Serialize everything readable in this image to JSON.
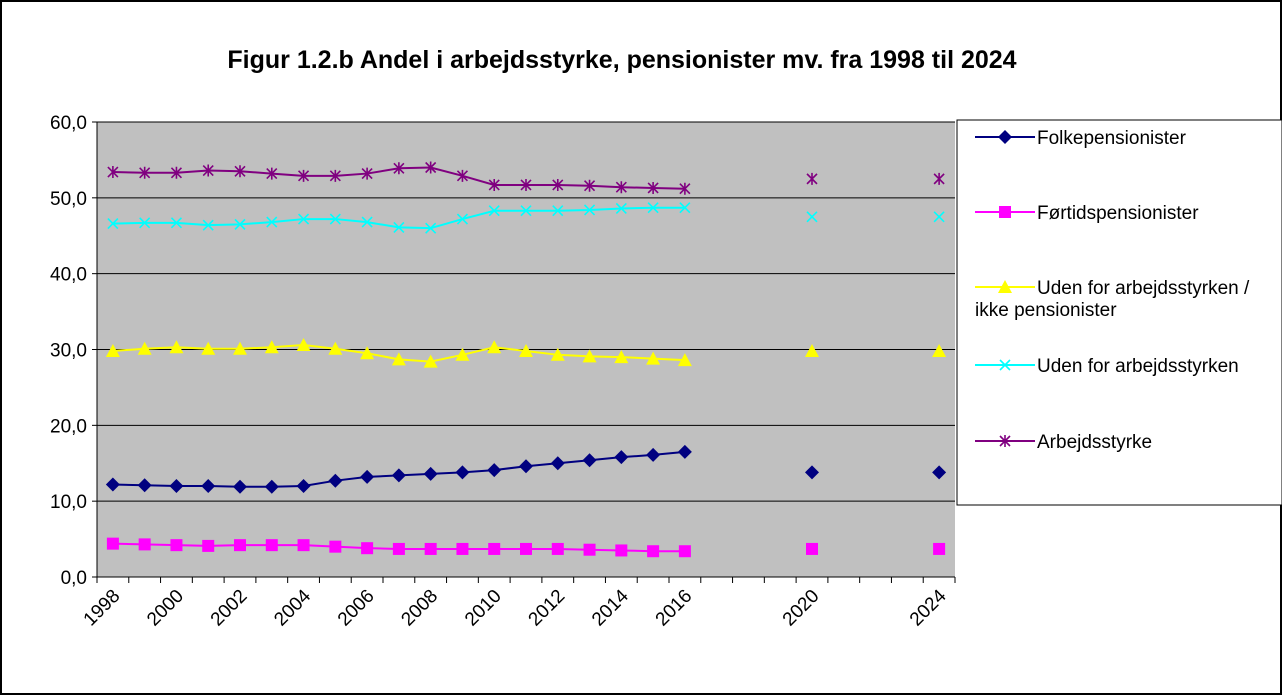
{
  "chart_data": {
    "type": "line",
    "title": "Figur 1.2.b Andel i arbejdsstyrke, pensionister mv. fra 1998 til 2024",
    "categories": [
      "1998",
      null,
      "2000",
      null,
      "2002",
      null,
      "2004",
      null,
      "2006",
      null,
      "2008",
      null,
      "2010",
      null,
      "2012",
      null,
      "2014",
      null,
      "2016",
      null,
      null,
      null,
      "2020",
      null,
      null,
      null,
      "2024"
    ],
    "ylim": [
      0,
      60
    ],
    "yticks": [
      {
        "value": 0,
        "label": "0,0"
      },
      {
        "value": 10,
        "label": "10,0"
      },
      {
        "value": 20,
        "label": "20,0"
      },
      {
        "value": 30,
        "label": "30,0"
      },
      {
        "value": 40,
        "label": "40,0"
      },
      {
        "value": 50,
        "label": "50,0"
      },
      {
        "value": 60,
        "label": "60,0"
      }
    ],
    "grid": true,
    "series": [
      {
        "name": "Folkepensionister",
        "color": "#000080",
        "marker": "diamond",
        "values": [
          12.2,
          12.1,
          12.0,
          12.0,
          11.9,
          11.9,
          12.0,
          12.7,
          13.2,
          13.4,
          13.6,
          13.8,
          14.1,
          14.6,
          15.0,
          15.4,
          15.8,
          16.1,
          16.5,
          null,
          null,
          null,
          13.8,
          null,
          null,
          null,
          13.8
        ]
      },
      {
        "name": "Førtidspensionister",
        "color": "#ff00ff",
        "marker": "square",
        "values": [
          4.4,
          4.3,
          4.2,
          4.1,
          4.2,
          4.2,
          4.2,
          4.0,
          3.8,
          3.7,
          3.7,
          3.7,
          3.7,
          3.7,
          3.7,
          3.6,
          3.5,
          3.4,
          3.4,
          null,
          null,
          null,
          3.7,
          null,
          null,
          null,
          3.7
        ]
      },
      {
        "name": "Uden for arbejdsstyrken / ikke pensionister",
        "color": "#ffff00",
        "marker": "triangle",
        "values": [
          29.8,
          30.1,
          30.3,
          30.1,
          30.1,
          30.3,
          30.6,
          30.1,
          29.5,
          28.7,
          28.4,
          29.3,
          30.3,
          29.8,
          29.3,
          29.1,
          29.0,
          28.8,
          28.6,
          null,
          null,
          null,
          29.8,
          null,
          null,
          null,
          29.8
        ]
      },
      {
        "name": "Uden for arbejdsstyrken",
        "color": "#00ffff",
        "marker": "x",
        "values": [
          46.6,
          46.7,
          46.7,
          46.4,
          46.5,
          46.8,
          47.2,
          47.2,
          46.8,
          46.1,
          46.0,
          47.2,
          48.3,
          48.3,
          48.3,
          48.4,
          48.6,
          48.7,
          48.7,
          null,
          null,
          null,
          47.5,
          null,
          null,
          null,
          47.5
        ]
      },
      {
        "name": "Arbejdsstyrke",
        "color": "#800080",
        "marker": "star",
        "values": [
          53.4,
          53.3,
          53.3,
          53.6,
          53.5,
          53.2,
          52.9,
          52.9,
          53.2,
          53.9,
          54.0,
          52.9,
          51.7,
          51.7,
          51.7,
          51.6,
          51.4,
          51.3,
          51.2,
          null,
          null,
          null,
          52.5,
          null,
          null,
          null,
          52.5
        ]
      }
    ]
  }
}
